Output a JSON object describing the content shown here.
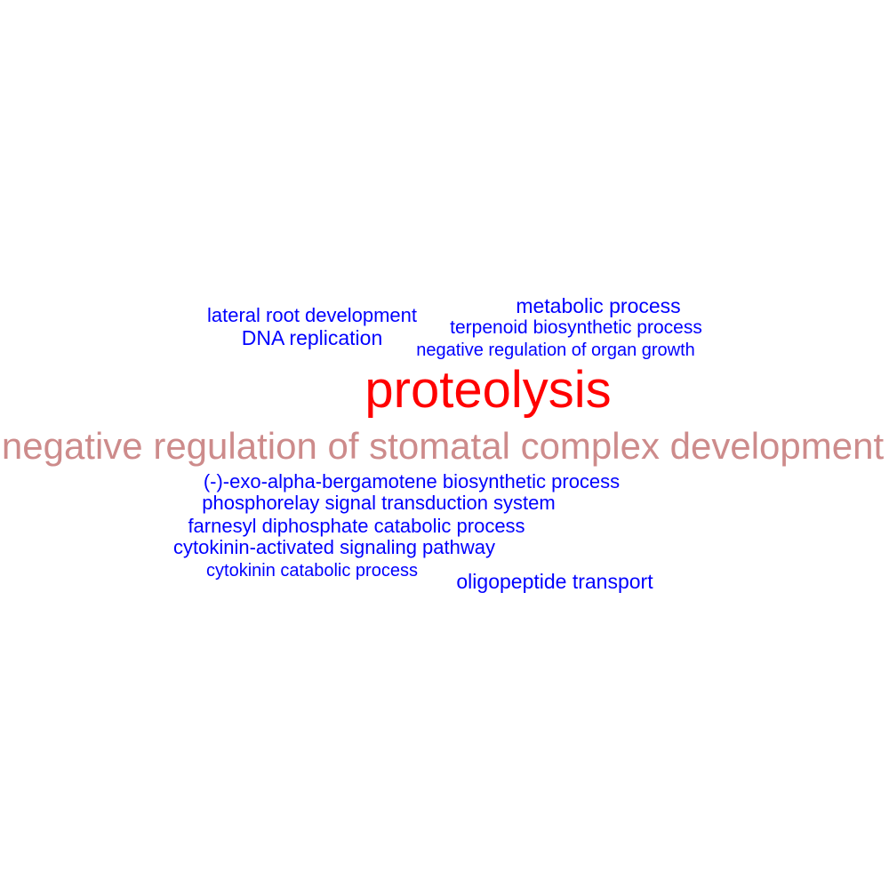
{
  "word_cloud": {
    "colors": {
      "primary": "#ff0000",
      "secondary": "#cd8b8b",
      "tertiary": "#0000ff"
    },
    "words": [
      {
        "id": "lateral-root-development",
        "text": "lateral root development",
        "color": "#0000ff"
      },
      {
        "id": "metabolic-process",
        "text": "metabolic process",
        "color": "#0000ff"
      },
      {
        "id": "terpenoid-biosynthetic-process",
        "text": "terpenoid biosynthetic process",
        "color": "#0000ff"
      },
      {
        "id": "dna-replication",
        "text": "DNA replication",
        "color": "#0000ff"
      },
      {
        "id": "negative-regulation-of-organ-growth",
        "text": "negative regulation of organ growth",
        "color": "#0000ff"
      },
      {
        "id": "proteolysis",
        "text": "proteolysis",
        "color": "#ff0000"
      },
      {
        "id": "negative-regulation-of-stomatal-complex-development",
        "text": "negative regulation of stomatal complex development",
        "color": "#cd8b8b"
      },
      {
        "id": "exo-alpha-bergamotene-biosynthetic-process",
        "text": "(-)-exo-alpha-bergamotene biosynthetic process",
        "color": "#0000ff"
      },
      {
        "id": "phosphorelay-signal-transduction-system",
        "text": "phosphorelay signal transduction system",
        "color": "#0000ff"
      },
      {
        "id": "farnesyl-diphosphate-catabolic-process",
        "text": "farnesyl diphosphate catabolic process",
        "color": "#0000ff"
      },
      {
        "id": "cytokinin-activated-signaling-pathway",
        "text": "cytokinin-activated signaling pathway",
        "color": "#0000ff"
      },
      {
        "id": "cytokinin-catabolic-process",
        "text": "cytokinin catabolic process",
        "color": "#0000ff"
      },
      {
        "id": "oligopeptide-transport",
        "text": "oligopeptide transport",
        "color": "#0000ff"
      }
    ]
  }
}
